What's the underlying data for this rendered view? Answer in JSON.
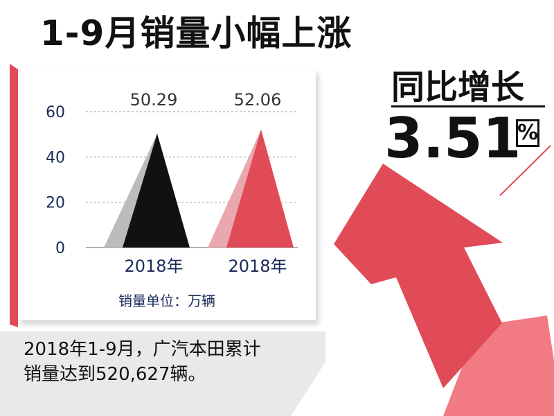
{
  "headline": "1-9月销量小幅上涨",
  "yoy": {
    "label": "同比增长",
    "value": "3.51",
    "unit": "%"
  },
  "caption": {
    "line1": "2018年1-9月，广汽本田累计",
    "line2": "销量达到520,627辆。"
  },
  "colors": {
    "accent": "#e04b57",
    "accent_light": "#e8a8ae",
    "dark": "#111111",
    "gray": "#bcbcbc"
  },
  "chart_data": {
    "type": "bar",
    "categories": [
      "2018年",
      "2018年"
    ],
    "values": [
      50.29,
      52.06
    ],
    "value_labels": [
      "50.29",
      "52.06"
    ],
    "yticks": [
      0,
      20,
      40,
      60
    ],
    "ylim": [
      0,
      60
    ],
    "grid": true,
    "unit_label": "销量单位：万辆",
    "bar_colors": [
      {
        "left": "#bcbcbc",
        "right": "#111111"
      },
      {
        "left": "#e8a8ae",
        "right": "#e04b57"
      }
    ]
  }
}
